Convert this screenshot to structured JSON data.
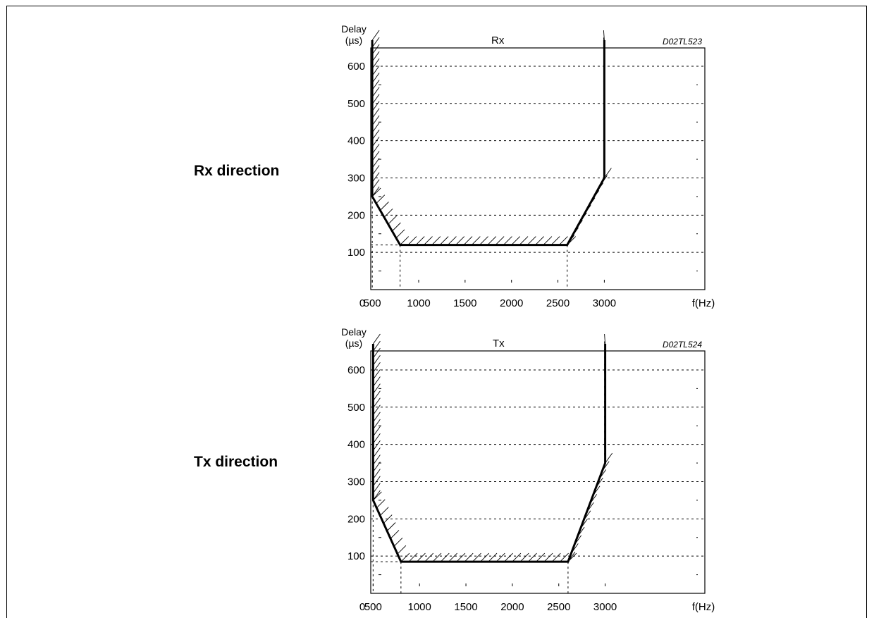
{
  "labels": {
    "rx_direction": "Rx direction",
    "tx_direction": "Tx direction"
  },
  "chart_data": [
    {
      "type": "line",
      "title": "Rx",
      "figure_code": "D02TL523",
      "ylabel_line1": "Delay",
      "ylabel_line2": "(µs)",
      "xlabel": "f(Hz)",
      "origin_label": "0",
      "x_ticks": [
        500,
        1000,
        1500,
        2000,
        2500,
        3000
      ],
      "y_ticks": [
        100,
        200,
        300,
        400,
        500,
        600
      ],
      "xlim": [
        0,
        3150
      ],
      "ylim": [
        0,
        670
      ],
      "grid": true,
      "series": [
        {
          "x": [
            500,
            500,
            800,
            2600,
            3000,
            3000
          ],
          "y": [
            670,
            250,
            120,
            120,
            300,
            670
          ]
        }
      ],
      "marker_frequencies": [
        500,
        800,
        2600
      ]
    },
    {
      "type": "line",
      "title": "Tx",
      "figure_code": "D02TL524",
      "ylabel_line1": "Delay",
      "ylabel_line2": "(µs)",
      "xlabel": "f(Hz)",
      "origin_label": "0",
      "x_ticks": [
        500,
        1000,
        1500,
        2000,
        2500,
        3000
      ],
      "y_ticks": [
        100,
        200,
        300,
        400,
        500,
        600
      ],
      "xlim": [
        0,
        3150
      ],
      "ylim": [
        0,
        670
      ],
      "grid": true,
      "series": [
        {
          "x": [
            500,
            500,
            800,
            2600,
            3000,
            3000
          ],
          "y": [
            670,
            250,
            85,
            85,
            350,
            670
          ]
        }
      ],
      "marker_frequencies": [
        500,
        800,
        2600
      ]
    }
  ]
}
